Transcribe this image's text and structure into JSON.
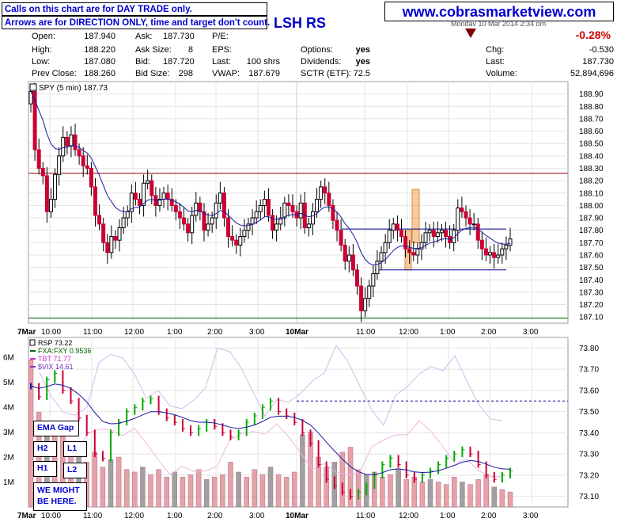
{
  "header": {
    "note_line1": "Calls on this chart are for DAY TRADE only.",
    "note_line2": "Arrows are for DIRECTION ONLY, time and target don't count.",
    "symbol_text": "LSH RS",
    "website": "www.cobrasmarketview.com",
    "date_partial": "Monday 10 Mar 2014 2:34 pm",
    "pct_change": "-0.28%",
    "stats": [
      {
        "label": "Open:",
        "value": "187.940"
      },
      {
        "label": "High:",
        "value": "188.220"
      },
      {
        "label": "Low:",
        "value": "187.080"
      },
      {
        "label": "Prev Close:",
        "value": "188.260"
      }
    ],
    "stats2": [
      {
        "label": "Ask:",
        "value": "187.730"
      },
      {
        "label": "Ask Size:",
        "value": "8"
      },
      {
        "label": "Bid:",
        "value": "187.720"
      },
      {
        "label": "Bid Size:",
        "value": "298"
      }
    ],
    "stats3": [
      {
        "label": "P/E:",
        "value": ""
      },
      {
        "label": "EPS:",
        "value": ""
      },
      {
        "label": "Last:",
        "value": "100 shrs"
      },
      {
        "label": "VWAP:",
        "value": "187.679"
      }
    ],
    "stats4": [
      {
        "label": "Options:",
        "value": "yes"
      },
      {
        "label": "Dividends:",
        "value": "yes"
      },
      {
        "label": "",
        "value": ""
      },
      {
        "label": "SCTR (ETF):",
        "value": "72.5"
      }
    ],
    "stats5": [
      {
        "label": "Chg:",
        "value": "-0.530"
      },
      {
        "label": "Last:",
        "value": "187.730"
      },
      {
        "label": "Volume:",
        "value": "52,894,696"
      }
    ]
  },
  "colors": {
    "up": "#00aa00",
    "down": "#cc0033",
    "ma": "#1a1aa0",
    "resistance": "#8b0000",
    "support": "#006600",
    "channel": "#00008b",
    "highlight": "#f0a050",
    "fxa": "#006600",
    "tbt": "#cc33cc",
    "vix": "#7733cc",
    "volume": "#e8a0a8",
    "volume_gray": "#a0a0a0"
  },
  "side_boxes": {
    "ema_gap": "EMA Gap",
    "h2": "H2",
    "l1": "L1",
    "h1": "H1",
    "l2": "L2",
    "note": "WE MIGHT BE HERE."
  },
  "chart_data": [
    {
      "type": "candlestick",
      "title": "SPY (5 min) 187.73",
      "legend": "SPY (5 min) 187.73",
      "ylim": [
        187.05,
        189.0
      ],
      "y_ticks": [
        "188.90",
        "188.80",
        "188.70",
        "188.60",
        "188.50",
        "188.40",
        "188.30",
        "188.20",
        "188.10",
        "188.00",
        "187.90",
        "187.80",
        "187.70",
        "187.60",
        "187.50",
        "187.40",
        "187.30",
        "187.20",
        "187.10"
      ],
      "x_ticks": [
        "7Mar",
        "10:00",
        "11:00",
        "12:00",
        "1:00",
        "2:00",
        "3:00",
        "10Mar",
        "11:00",
        "12:00",
        "1:00",
        "2:00",
        "3:00"
      ],
      "close": [
        188.92,
        188.45,
        188.3,
        188.24,
        187.95,
        188.05,
        188.25,
        188.4,
        188.55,
        188.48,
        188.57,
        188.45,
        188.4,
        188.32,
        188.3,
        188.15,
        187.92,
        187.85,
        187.7,
        187.62,
        187.75,
        187.72,
        187.82,
        187.9,
        187.95,
        188.1,
        188.05,
        188.0,
        188.18,
        188.2,
        188.08,
        188.0,
        188.05,
        188.1,
        188.05,
        188.0,
        187.95,
        187.9,
        187.85,
        187.78,
        187.92,
        188.02,
        187.95,
        187.8,
        187.85,
        187.9,
        188.02,
        188.1,
        187.9,
        187.75,
        187.72,
        187.68,
        187.75,
        187.8,
        187.85,
        187.9,
        187.95,
        188.0,
        188.05,
        187.92,
        187.8,
        187.85,
        187.9,
        188.02,
        188.0,
        187.95,
        187.9,
        188.02,
        187.82,
        187.85,
        187.95,
        188.05,
        188.15,
        188.1,
        188.0,
        187.88,
        187.8,
        187.68,
        187.55,
        187.6,
        187.48,
        187.35,
        187.15,
        187.25,
        187.35,
        187.45,
        187.55,
        187.62,
        187.7,
        187.8,
        187.85,
        187.8,
        187.75,
        187.65,
        187.62,
        187.6,
        187.65,
        187.7,
        187.78,
        187.8,
        187.75,
        187.78,
        187.8,
        187.75,
        187.7,
        187.8,
        187.98,
        187.95,
        187.9,
        187.85,
        187.85,
        187.72,
        187.65,
        187.6,
        187.62,
        187.58,
        187.6,
        187.65,
        187.68,
        187.73
      ],
      "resistance": 188.26,
      "support": 187.09,
      "channel_top": 187.81,
      "channel_bottom": 187.48,
      "highlight_box_1": [
        187.48,
        187.8
      ],
      "highlight_box_2": [
        187.7,
        188.13
      ]
    },
    {
      "type": "line",
      "legend": [
        "RSP 73.22",
        "FXA:FXY 0.9536",
        "TBT 71.77",
        "$VIX 14.61"
      ],
      "ylim": [
        73.05,
        73.85
      ],
      "y_ticks": [
        "73.80",
        "73.70",
        "73.60",
        "73.50",
        "73.40",
        "73.30",
        "73.20",
        "73.10"
      ],
      "volume_ticks": [
        "6M",
        "5M",
        "4M",
        "3M",
        "2M",
        "1M"
      ],
      "x_ticks": [
        "7Mar",
        "10:00",
        "11:00",
        "12:00",
        "1:00",
        "2:00",
        "3:00",
        "10Mar",
        "11:00",
        "12:00",
        "1:00",
        "2:00",
        "3:00"
      ],
      "dashed_level": 73.55,
      "rsp_close": [
        73.62,
        73.57,
        73.65,
        73.68,
        73.6,
        73.55,
        73.47,
        73.4,
        73.3,
        73.28,
        73.4,
        73.45,
        73.5,
        73.52,
        73.55,
        73.56,
        73.5,
        73.47,
        73.45,
        73.42,
        73.4,
        73.42,
        73.45,
        73.43,
        73.4,
        73.38,
        73.4,
        73.45,
        73.48,
        73.52,
        73.55,
        73.5,
        73.48,
        73.45,
        73.4,
        73.35,
        73.25,
        73.18,
        73.15,
        73.12,
        73.1,
        73.12,
        73.15,
        73.2,
        73.25,
        73.28,
        73.25,
        73.2,
        73.18,
        73.2,
        73.22,
        73.25,
        73.28,
        73.3,
        73.32,
        73.3,
        73.25,
        73.2,
        73.18,
        73.2,
        73.22
      ],
      "volume_millions": [
        5.9,
        3.8,
        3.2,
        3.0,
        2.9,
        2.2,
        2.5,
        1.8,
        2.2,
        1.6,
        1.9,
        2.0,
        1.5,
        1.4,
        1.6,
        1.3,
        1.5,
        1.2,
        1.4,
        1.2,
        1.3,
        1.5,
        1.1,
        1.2,
        1.3,
        1.8,
        1.4,
        1.2,
        1.5,
        1.3,
        1.6,
        1.3,
        1.2,
        1.4,
        2.9,
        3.0,
        2.0,
        1.6,
        1.8,
        2.2,
        2.4,
        1.5,
        1.3,
        1.4,
        1.2,
        1.3,
        1.5,
        1.1,
        1.2,
        1.0,
        1.1,
        1.0,
        0.9,
        1.2,
        1.0,
        0.9,
        1.1,
        1.3,
        0.8,
        0.7,
        0.6
      ]
    }
  ]
}
